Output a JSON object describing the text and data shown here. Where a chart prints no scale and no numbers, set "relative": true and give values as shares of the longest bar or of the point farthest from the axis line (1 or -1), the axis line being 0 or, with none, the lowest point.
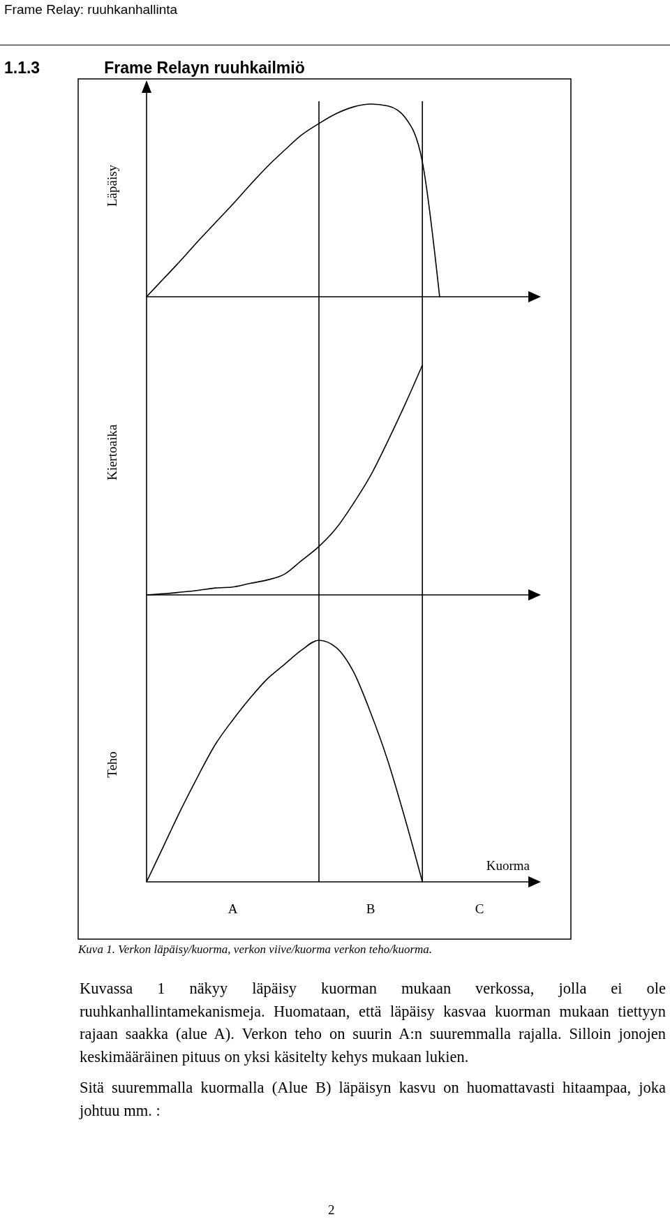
{
  "chart_data": [
    {
      "type": "line",
      "title": "1.1.3 Frame Relayn ruuhkailmiö",
      "ylabel": "Läpäisy",
      "relative": true,
      "color": "#000000",
      "categories": [
        null,
        null,
        null,
        null,
        null,
        null,
        null,
        null,
        null,
        null,
        null,
        null,
        null,
        null,
        null,
        null,
        null,
        null,
        null,
        null,
        null,
        null,
        null
      ],
      "values": [
        0,
        0.095,
        0.19,
        0.29,
        0.385,
        0.48,
        0.58,
        0.675,
        0.76,
        0.84,
        0.899,
        0.95,
        0.985,
        1,
        0.99,
        0.93,
        0.7,
        0,
        null,
        null,
        null,
        null,
        null
      ],
      "annotations": [
        "Frame Relay: ruuhkanhallinta"
      ]
    },
    {
      "type": "line",
      "ylabel": "Kiertoaika",
      "relative": true,
      "color": "#000000",
      "categories": [
        null,
        null,
        null,
        null,
        null,
        null,
        null,
        null,
        null,
        null,
        null,
        null,
        null,
        null,
        null,
        null,
        null,
        null,
        null,
        null,
        null,
        null,
        null
      ],
      "values": [
        0,
        0.005,
        0.012,
        0.02,
        0.03,
        0.034,
        0.05,
        0.065,
        0.09,
        0.15,
        0.211,
        0.29,
        0.398,
        0.52,
        0.67,
        0.83,
        1,
        null,
        null,
        null,
        null,
        null,
        null
      ]
    },
    {
      "type": "line",
      "ylabel": "Teho",
      "xlabel": "Kuorma",
      "relative": true,
      "color": "#000000",
      "categories": [
        null,
        null,
        null,
        null,
        null,
        null,
        null,
        null,
        null,
        null,
        null,
        null,
        null,
        null,
        null,
        null,
        null,
        null,
        null,
        null,
        null,
        null,
        null
      ],
      "values": [
        0,
        0.15,
        0.3,
        0.44,
        0.57,
        0.67,
        0.76,
        0.84,
        0.9,
        0.96,
        1,
        0.97,
        0.87,
        0.7,
        0.5,
        0.26,
        0,
        null,
        null,
        null,
        null,
        null,
        null
      ],
      "annotations": [
        "A",
        "B",
        "C",
        "Kuva 1. Verkon läpäisy/kuorma, verkon viive/kuorma verkon teho/kuorma.",
        "Kuvassa 1 näkyy läpäisy kuorman mukaan verkossa, jolla ei ole ruuhkanhallintamekanismeja. Huomataan, että läpäisy kasvaa kuorman mukaan tiettyyn rajaan saakka (alue A). Verkon teho on suurin A:n suuremmalla rajalla. Silloin jonojen keskimääräinen pituus on yksi käsitelty kehys mukaan lukien.",
        "Sitä suuremmalla kuormalla (Alue B) läpäisyn kasvu on huomattavasti hitaampaa, joka johtuu mm. :",
        "2"
      ]
    }
  ]
}
